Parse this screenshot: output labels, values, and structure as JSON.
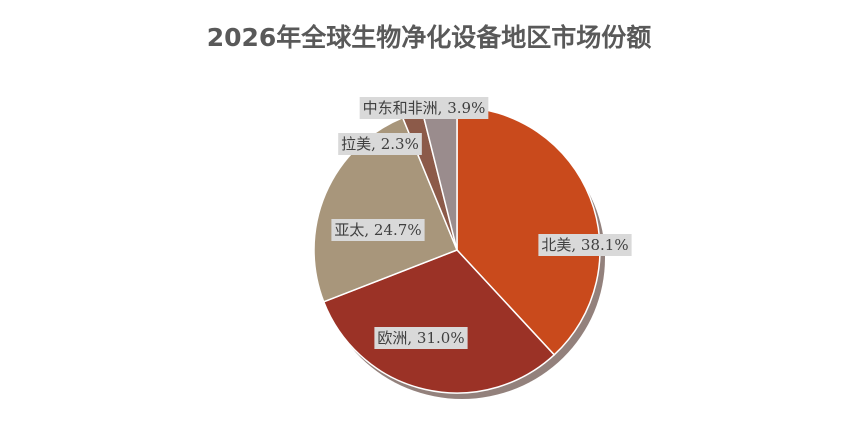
{
  "chart_data": {
    "type": "pie",
    "title": "2026年全球生物净化设备地区市场份额",
    "values": [
      38.1,
      31.0,
      24.7,
      2.3,
      3.9
    ],
    "value_labels": [
      "北美, 38.1%",
      "欧洲, 31.0%",
      "亚太, 24.7%",
      "拉美, 2.3%",
      "中东和非洲, 3.9%"
    ],
    "colors": [
      "#c94a1c",
      "#9b3226",
      "#a8967b",
      "#8c5a49",
      "#9a8c8d"
    ]
  }
}
